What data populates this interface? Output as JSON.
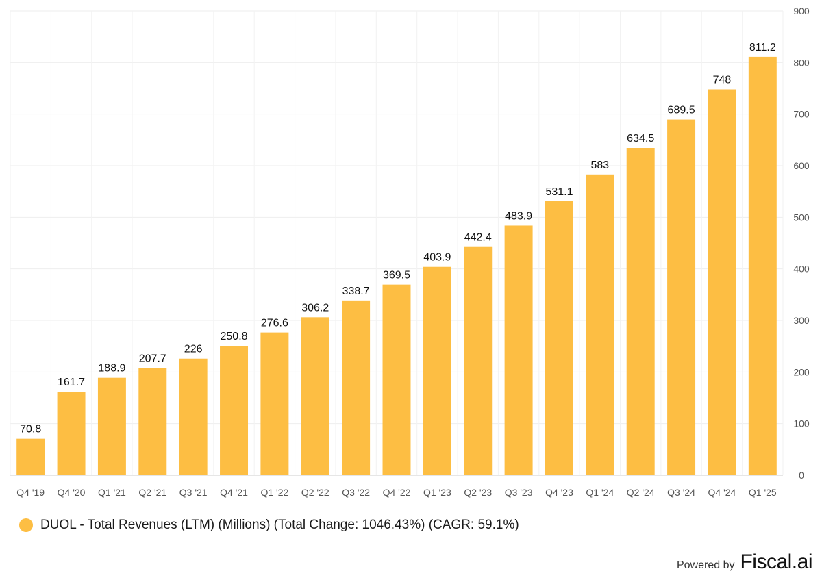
{
  "chart_data": {
    "type": "bar",
    "categories": [
      "Q4 '19",
      "Q4 '20",
      "Q1 '21",
      "Q2 '21",
      "Q3 '21",
      "Q4 '21",
      "Q1 '22",
      "Q2 '22",
      "Q3 '22",
      "Q4 '22",
      "Q1 '23",
      "Q2 '23",
      "Q3 '23",
      "Q4 '23",
      "Q1 '24",
      "Q2 '24",
      "Q3 '24",
      "Q4 '24",
      "Q1 '25"
    ],
    "values": [
      70.8,
      161.7,
      188.9,
      207.7,
      226,
      250.8,
      276.6,
      306.2,
      338.7,
      369.5,
      403.9,
      442.4,
      483.9,
      531.1,
      583,
      634.5,
      689.5,
      748,
      811.2
    ],
    "data_labels": [
      "70.8",
      "161.7",
      "188.9",
      "207.7",
      "226",
      "250.8",
      "276.6",
      "306.2",
      "338.7",
      "369.5",
      "403.9",
      "442.4",
      "483.9",
      "531.1",
      "583",
      "634.5",
      "689.5",
      "748",
      "811.2"
    ],
    "ylim": [
      0,
      900
    ],
    "yticks": [
      "0",
      "100",
      "200",
      "300",
      "400",
      "500",
      "600",
      "700",
      "800",
      "900"
    ],
    "y_axis_side": "right",
    "grid": true,
    "legend_position": "bottom-left",
    "series": [
      {
        "name": "DUOL - Total Revenues (LTM) (Millions) (Total Change: 1046.43%) (CAGR: 59.1%)",
        "color": "#FDBE43"
      }
    ]
  },
  "legend": {
    "label": "DUOL - Total Revenues (LTM) (Millions) (Total Change: 1046.43%) (CAGR: 59.1%)",
    "color": "#FDBE43"
  },
  "footer": {
    "powered_by": "Powered by",
    "brand": "Fiscal.ai"
  }
}
